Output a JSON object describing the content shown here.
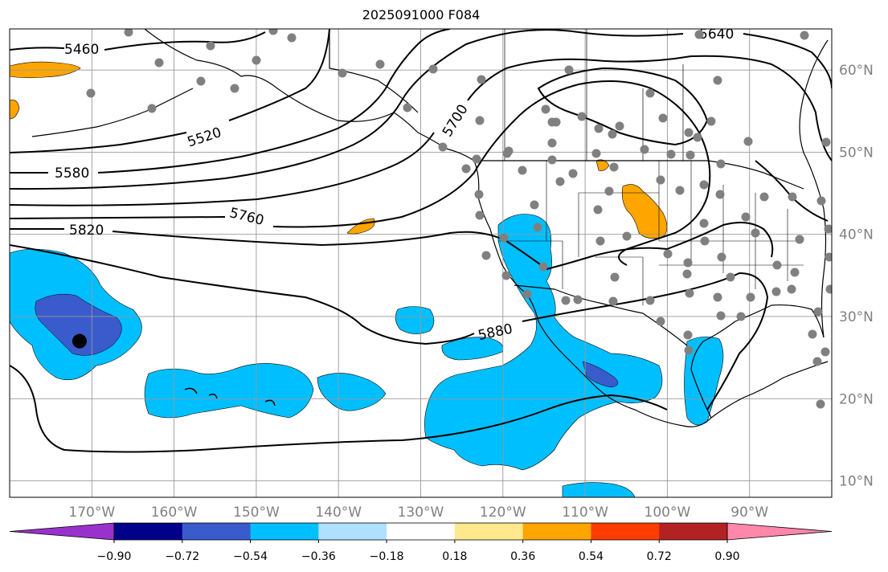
{
  "title": "2025091000 F084",
  "map": {
    "lon_range": [
      -180,
      -80
    ],
    "lat_range": [
      8,
      65
    ],
    "lon_ticks": [
      {
        "lon": -170,
        "label": "170°W"
      },
      {
        "lon": -160,
        "label": "160°W"
      },
      {
        "lon": -150,
        "label": "150°W"
      },
      {
        "lon": -140,
        "label": "140°W"
      },
      {
        "lon": -130,
        "label": "130°W"
      },
      {
        "lon": -120,
        "label": "120°W"
      },
      {
        "lon": -110,
        "label": "110°W"
      },
      {
        "lon": -100,
        "label": "100°W"
      },
      {
        "lon": -90,
        "label": "90°W"
      }
    ],
    "lat_ticks": [
      {
        "lat": 60,
        "label": "60°N"
      },
      {
        "lat": 50,
        "label": "50°N"
      },
      {
        "lat": 40,
        "label": "40°N"
      },
      {
        "lat": 30,
        "label": "30°N"
      },
      {
        "lat": 20,
        "label": "20°N"
      },
      {
        "lat": 10,
        "label": "10°N"
      }
    ],
    "gridlines": true,
    "contour_labels": [
      "5460",
      "5520",
      "5580",
      "5640",
      "5700",
      "5760",
      "5820",
      "5880"
    ],
    "marker": {
      "lon": -171.5,
      "lat": 27,
      "color": "#000000"
    },
    "station_color": "#808080"
  },
  "colorbar": {
    "colors": [
      "#9932cc",
      "#00008b",
      "#3a5bcc",
      "#00bfff",
      "#b0e0ff",
      "#ffffff",
      "#ffe98c",
      "#ffa500",
      "#ff3c00",
      "#b22222",
      "#ff88aa"
    ],
    "tick_labels": [
      "−0.90",
      "−0.72",
      "−0.54",
      "−0.36",
      "−0.18",
      "0.18",
      "0.36",
      "0.54",
      "0.72",
      "0.90"
    ]
  },
  "colors": {
    "negative_light": "#00bfff",
    "negative_medium": "#3a5bcc",
    "positive_orange": "#ffa500"
  }
}
